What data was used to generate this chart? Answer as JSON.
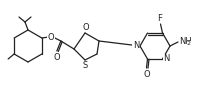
{
  "background": "#ffffff",
  "line_color": "#222222",
  "line_width": 0.9,
  "font_size": 6.0,
  "figsize": [
    2.08,
    0.96
  ],
  "dpi": 100,
  "xlim": [
    0,
    208
  ],
  "ylim": [
    0,
    96
  ]
}
